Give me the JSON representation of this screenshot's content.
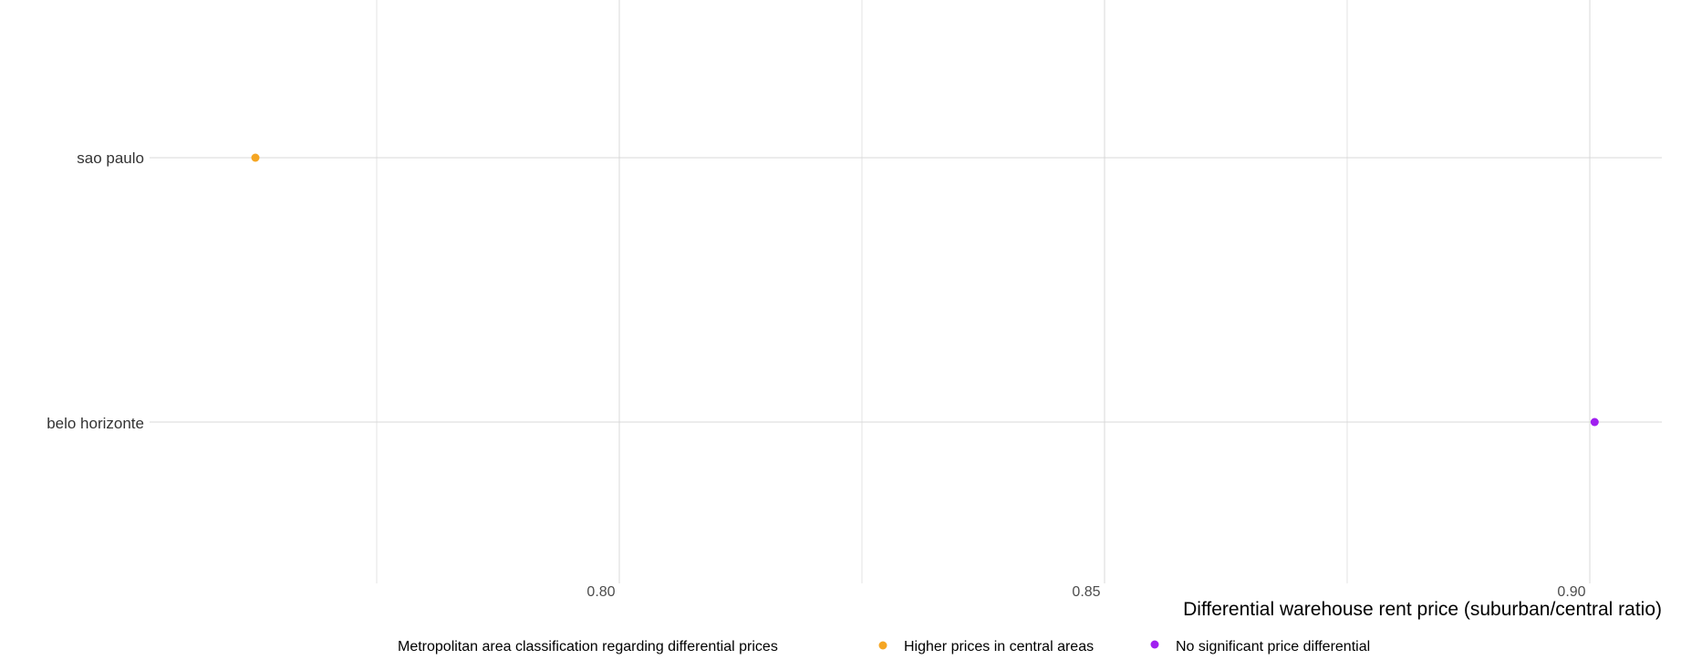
{
  "chart_data": {
    "type": "scatter",
    "title": "",
    "xlabel": "Differential warehouse rent price (suburban/central ratio)",
    "ylabel": "",
    "categories": [
      "belo horizonte",
      "sao paulo"
    ],
    "xlim": [
      0.7575,
      0.9075
    ],
    "x_ticks": [
      {
        "value": 0.8,
        "label": "0.80"
      },
      {
        "value": 0.85,
        "label": "0.85"
      },
      {
        "value": 0.9,
        "label": "0.90"
      }
    ],
    "x_minor_ticks": [
      0.775,
      0.825,
      0.875
    ],
    "grid": true,
    "legend": {
      "position": "bottom",
      "title": "Metropolitan area classification regarding differential prices",
      "entries": [
        {
          "label": "Higher prices in central areas",
          "color": "#f5a623"
        },
        {
          "label": "No significant price differential",
          "color": "#a020f0"
        }
      ]
    },
    "points": [
      {
        "category": "sao paulo",
        "x": 0.7625,
        "group": "Higher prices in central areas",
        "color": "#f5a623"
      },
      {
        "category": "belo horizonte",
        "x": 0.9005,
        "group": "No significant price differential",
        "color": "#a020f0"
      }
    ]
  }
}
